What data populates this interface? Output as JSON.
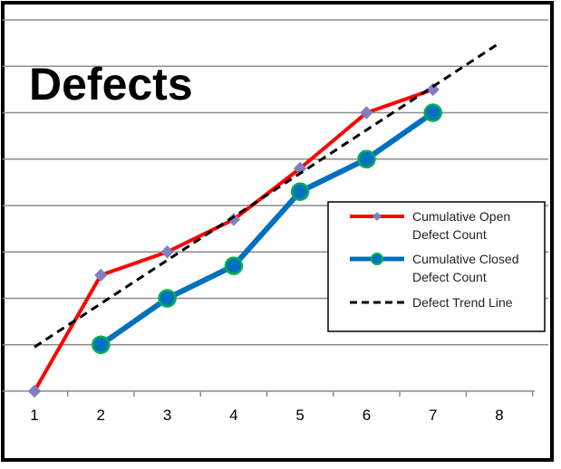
{
  "chart_data": {
    "type": "line",
    "title": "Defects",
    "x": [
      1,
      2,
      3,
      4,
      5,
      6,
      7,
      8
    ],
    "xlim": [
      1,
      8
    ],
    "ylim": [
      0,
      8
    ],
    "grid": true,
    "legend_position": "right",
    "series": [
      {
        "name": "Cumulative Open Defect Count",
        "color": "#ff0000",
        "marker": "diamond",
        "marker_color": "#8080c0",
        "x": [
          1,
          2,
          3,
          4,
          5,
          6,
          7
        ],
        "y": [
          0,
          2.5,
          3.0,
          3.7,
          4.8,
          6.0,
          6.5
        ]
      },
      {
        "name": "Cumulative Closed Defect Count",
        "color": "#0070c0",
        "marker": "circle",
        "marker_color": "#00b050",
        "x": [
          2,
          3,
          4,
          5,
          6,
          7
        ],
        "y": [
          1.0,
          2.0,
          2.7,
          4.3,
          5.0,
          6.0
        ]
      },
      {
        "name": "Defect Trend Line",
        "color": "#000000",
        "dashed": true,
        "x": [
          1,
          8
        ],
        "y": [
          0.95,
          7.5
        ]
      }
    ]
  }
}
